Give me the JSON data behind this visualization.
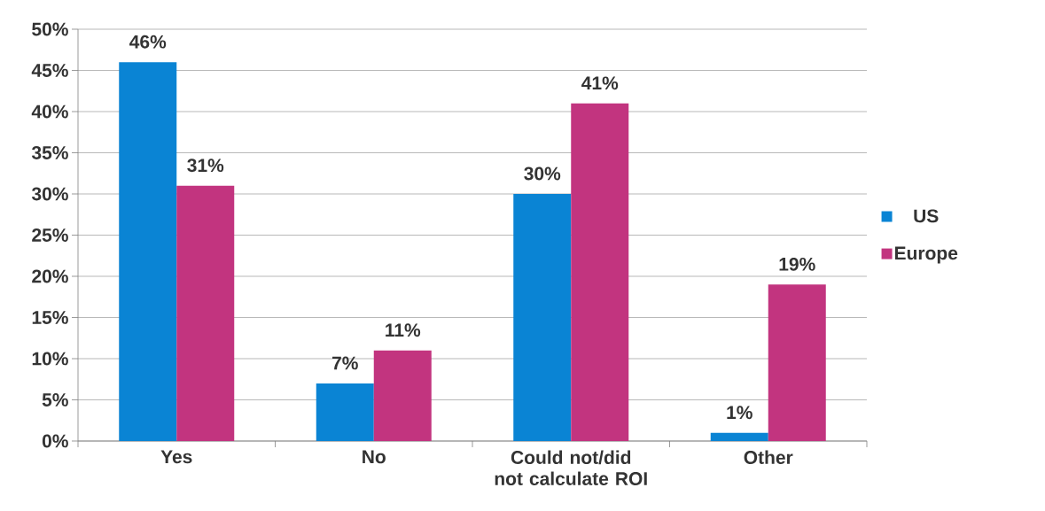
{
  "chart_data": {
    "type": "bar",
    "categories": [
      "Yes",
      "No",
      "Could not/did not calculate ROI",
      "Other"
    ],
    "series": [
      {
        "name": "US",
        "color": "#0a84d4",
        "values": [
          46,
          7,
          30,
          1
        ],
        "value_labels": [
          "46%",
          "7%",
          "30%",
          "1%"
        ]
      },
      {
        "name": "Europe",
        "color": "#c2347f",
        "values": [
          31,
          11,
          41,
          19
        ],
        "value_labels": [
          "31%",
          "11%",
          "41%",
          "19%"
        ]
      }
    ],
    "ylim": [
      0,
      50
    ],
    "yticks": [
      {
        "value": 0,
        "label": "0%"
      },
      {
        "value": 5,
        "label": "5%"
      },
      {
        "value": 10,
        "label": "10%"
      },
      {
        "value": 15,
        "label": "15%"
      },
      {
        "value": 20,
        "label": "20%"
      },
      {
        "value": 25,
        "label": "25%"
      },
      {
        "value": 30,
        "label": "30%"
      },
      {
        "value": 35,
        "label": "35%"
      },
      {
        "value": 40,
        "label": "40%"
      },
      {
        "value": 45,
        "label": "45%"
      },
      {
        "value": 50,
        "label": "50%"
      }
    ],
    "grid": "y",
    "legend": "right"
  }
}
